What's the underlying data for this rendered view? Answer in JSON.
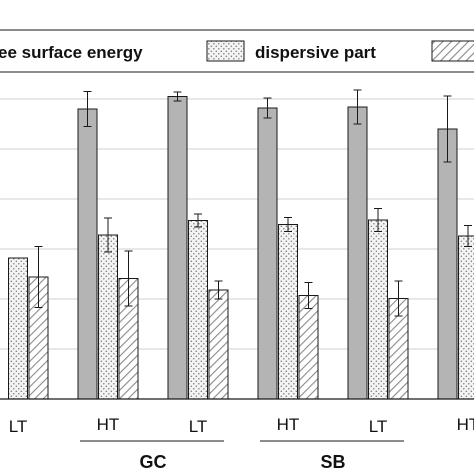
{
  "chart_data": {
    "type": "bar",
    "categories": [
      "LT",
      "HT",
      "LT",
      "HT",
      "LT",
      "HT"
    ],
    "groups": [
      {
        "label": "GC",
        "categories": [
          1,
          2
        ]
      },
      {
        "label": "SB",
        "categories": [
          3,
          4
        ]
      }
    ],
    "series": [
      {
        "name": "ee surface energy",
        "values": [
          null,
          58.0,
          60.5,
          58.2,
          58.4,
          54.0
        ],
        "errors": [
          null,
          3.5,
          0.9,
          2.0,
          3.4,
          6.6
        ]
      },
      {
        "name": "dispersive part",
        "values": [
          28.2,
          32.8,
          35.7,
          34.9,
          35.8,
          32.6
        ],
        "errors": [
          null,
          3.4,
          1.3,
          1.4,
          2.3,
          2.1
        ]
      },
      {
        "name": "",
        "values": [
          24.4,
          24.1,
          21.8,
          20.7,
          20.1,
          null
        ],
        "errors": [
          6.1,
          5.5,
          1.8,
          2.6,
          3.5,
          null
        ]
      }
    ],
    "ylim": [
      0,
      67
    ],
    "grid": true,
    "legend_position": "top",
    "colors": {
      "total_fill": "#b4b4b4",
      "stroke": "#1a1a1a",
      "gridline": "#d0d0d0",
      "dots_bg": "#f4f4f4",
      "dots": "#7a7a7a",
      "hatch": "#8a8a8a"
    }
  }
}
